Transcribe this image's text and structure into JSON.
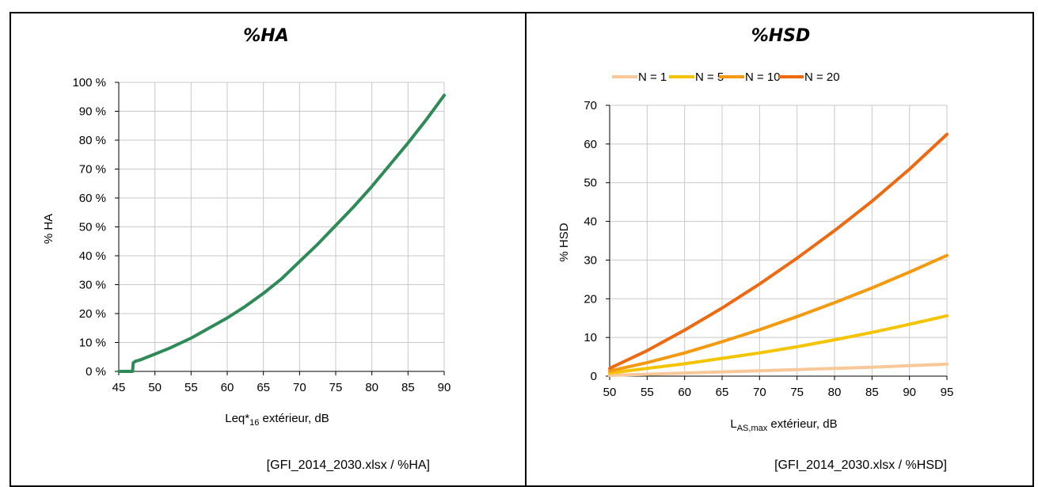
{
  "chart_data": [
    {
      "type": "line",
      "title": "%HA",
      "xlabel": "Leq*",
      "xlabel_sub": "16",
      "xlabel_rest": " extérieur, dB",
      "ylabel": "% HA",
      "xlim": [
        45,
        90
      ],
      "ylim": [
        0,
        100
      ],
      "x_ticks": [
        "45",
        "50",
        "55",
        "60",
        "65",
        "70",
        "75",
        "80",
        "85",
        "90"
      ],
      "y_ticks": [
        "0 %",
        "10 %",
        "20 %",
        "30 %",
        "40 %",
        "50 %",
        "60 %",
        "70 %",
        "80 %",
        "90 %",
        "100 %"
      ],
      "grid": true,
      "series": [
        {
          "color": "#2e8b57",
          "x": [
            45,
            46,
            46.9,
            47,
            47.3,
            48,
            50,
            52,
            55,
            57.5,
            60,
            62.5,
            65,
            67.5,
            70,
            72.5,
            75,
            77.5,
            80,
            82.5,
            85,
            87.5,
            90
          ],
          "y": [
            0,
            0,
            0,
            3,
            3.5,
            4,
            6,
            8,
            11.5,
            15,
            18.5,
            22.5,
            27,
            32,
            38,
            44,
            50.5,
            57,
            64,
            71.5,
            79,
            87,
            95.5
          ]
        }
      ],
      "source": "[GFI_2014_2030.xlsx / %HA]"
    },
    {
      "type": "line",
      "title": "%HSD",
      "xlabel": "L",
      "xlabel_sub": "AS,max",
      "xlabel_rest": " extérieur, dB",
      "ylabel": "% HSD",
      "xlim": [
        50,
        95
      ],
      "ylim": [
        0,
        70
      ],
      "x_ticks": [
        "50",
        "55",
        "60",
        "65",
        "70",
        "75",
        "80",
        "85",
        "90",
        "95"
      ],
      "y_ticks": [
        "0",
        "10",
        "20",
        "30",
        "40",
        "50",
        "60",
        "70"
      ],
      "grid": true,
      "legend_position": "top",
      "series": [
        {
          "name": "N = 1",
          "color": "#f8c89a",
          "x": [
            50,
            55,
            60,
            65,
            70,
            75,
            80,
            85,
            90,
            95
          ],
          "y": [
            0.2,
            0.5,
            0.8,
            1.1,
            1.4,
            1.7,
            2.0,
            2.3,
            2.7,
            3.1
          ]
        },
        {
          "name": "N = 5",
          "color": "#f5c400",
          "x": [
            50,
            55,
            60,
            65,
            70,
            75,
            80,
            85,
            90,
            95
          ],
          "y": [
            0.8,
            2.0,
            3.2,
            4.6,
            6.0,
            7.6,
            9.4,
            11.3,
            13.4,
            15.6
          ]
        },
        {
          "name": "N = 10",
          "color": "#f39a11",
          "x": [
            50,
            55,
            60,
            65,
            70,
            75,
            80,
            85,
            90,
            95
          ],
          "y": [
            1.3,
            3.5,
            6.0,
            8.9,
            12.0,
            15.4,
            19.0,
            22.8,
            26.9,
            31.2
          ]
        },
        {
          "name": "N = 20",
          "color": "#ee6a12",
          "x": [
            50,
            55,
            60,
            65,
            70,
            75,
            80,
            85,
            90,
            95
          ],
          "y": [
            2.0,
            6.6,
            11.9,
            17.6,
            23.8,
            30.5,
            37.6,
            45.2,
            53.5,
            62.5
          ]
        }
      ],
      "source": "[GFI_2014_2030.xlsx / %HSD]"
    }
  ]
}
